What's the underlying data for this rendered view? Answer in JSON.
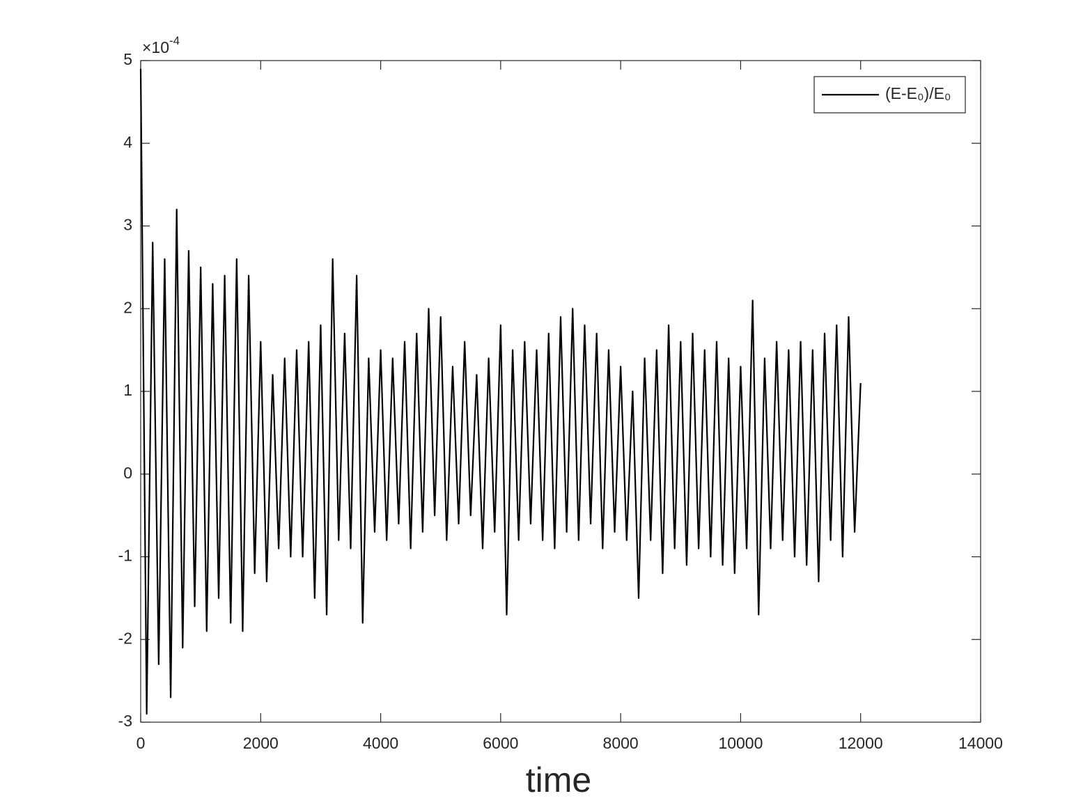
{
  "chart_data": {
    "type": "line",
    "xlabel": "time",
    "y_exponent": {
      "base": "×10",
      "power": "-4"
    },
    "x": [
      0,
      100,
      200,
      300,
      400,
      500,
      600,
      700,
      800,
      900,
      1000,
      1100,
      1200,
      1300,
      1400,
      1500,
      1600,
      1700,
      1800,
      1900,
      2000,
      2100,
      2200,
      2300,
      2400,
      2500,
      2600,
      2700,
      2800,
      2900,
      3000,
      3100,
      3200,
      3300,
      3400,
      3500,
      3600,
      3700,
      3800,
      3900,
      4000,
      4100,
      4200,
      4300,
      4400,
      4500,
      4600,
      4700,
      4800,
      4900,
      5000,
      5100,
      5200,
      5300,
      5400,
      5500,
      5600,
      5700,
      5800,
      5900,
      6000,
      6100,
      6200,
      6300,
      6400,
      6500,
      6600,
      6700,
      6800,
      6900,
      7000,
      7100,
      7200,
      7300,
      7400,
      7500,
      7600,
      7700,
      7800,
      7900,
      8000,
      8100,
      8200,
      8300,
      8400,
      8500,
      8600,
      8700,
      8800,
      8900,
      9000,
      9100,
      9200,
      9300,
      9400,
      9500,
      9600,
      9700,
      9800,
      9900,
      10000,
      10100,
      10200,
      10300,
      10400,
      10500,
      10600,
      10700,
      10800,
      10900,
      11000,
      11100,
      11200,
      11300,
      11400,
      11500,
      11600,
      11700,
      11800,
      11900,
      12000
    ],
    "series": [
      {
        "name": "(E-E₀)/E₀",
        "color": "#000000",
        "values": [
          4.9,
          -2.9,
          2.8,
          -2.3,
          2.6,
          -2.7,
          3.2,
          -2.1,
          2.7,
          -1.6,
          2.5,
          -1.9,
          2.3,
          -1.5,
          2.4,
          -1.8,
          2.6,
          -1.9,
          2.4,
          -1.2,
          1.6,
          -1.3,
          1.2,
          -0.9,
          1.4,
          -1.0,
          1.5,
          -1.0,
          1.6,
          -1.5,
          1.8,
          -1.7,
          2.6,
          -0.8,
          1.7,
          -0.9,
          2.4,
          -1.8,
          1.4,
          -0.7,
          1.5,
          -0.8,
          1.4,
          -0.6,
          1.6,
          -0.9,
          1.7,
          -0.7,
          2.0,
          -0.5,
          1.9,
          -0.8,
          1.3,
          -0.6,
          1.6,
          -0.5,
          1.2,
          -0.9,
          1.4,
          -0.7,
          1.8,
          -1.7,
          1.5,
          -0.8,
          1.6,
          -0.6,
          1.5,
          -0.8,
          1.7,
          -0.9,
          1.9,
          -0.7,
          2.0,
          -0.8,
          1.8,
          -0.6,
          1.7,
          -0.9,
          1.5,
          -0.7,
          1.3,
          -0.8,
          1.0,
          -1.5,
          1.4,
          -0.8,
          1.5,
          -1.2,
          1.8,
          -0.9,
          1.6,
          -1.1,
          1.7,
          -0.9,
          1.5,
          -1.0,
          1.6,
          -1.1,
          1.4,
          -1.2,
          1.3,
          -0.9,
          2.1,
          -1.7,
          1.4,
          -0.9,
          1.6,
          -0.8,
          1.5,
          -1.0,
          1.6,
          -1.1,
          1.5,
          -1.3,
          1.7,
          -0.8,
          1.8,
          -1.0,
          1.9,
          -0.7,
          1.1
        ]
      }
    ],
    "xlim": [
      0,
      14000
    ],
    "xticks": [
      0,
      2000,
      4000,
      6000,
      8000,
      10000,
      12000,
      14000
    ],
    "ylim": [
      -3,
      5
    ],
    "yticks": [
      -3,
      -2,
      -1,
      0,
      1,
      2,
      3,
      4,
      5
    ],
    "grid": false,
    "legend": "upper right"
  }
}
